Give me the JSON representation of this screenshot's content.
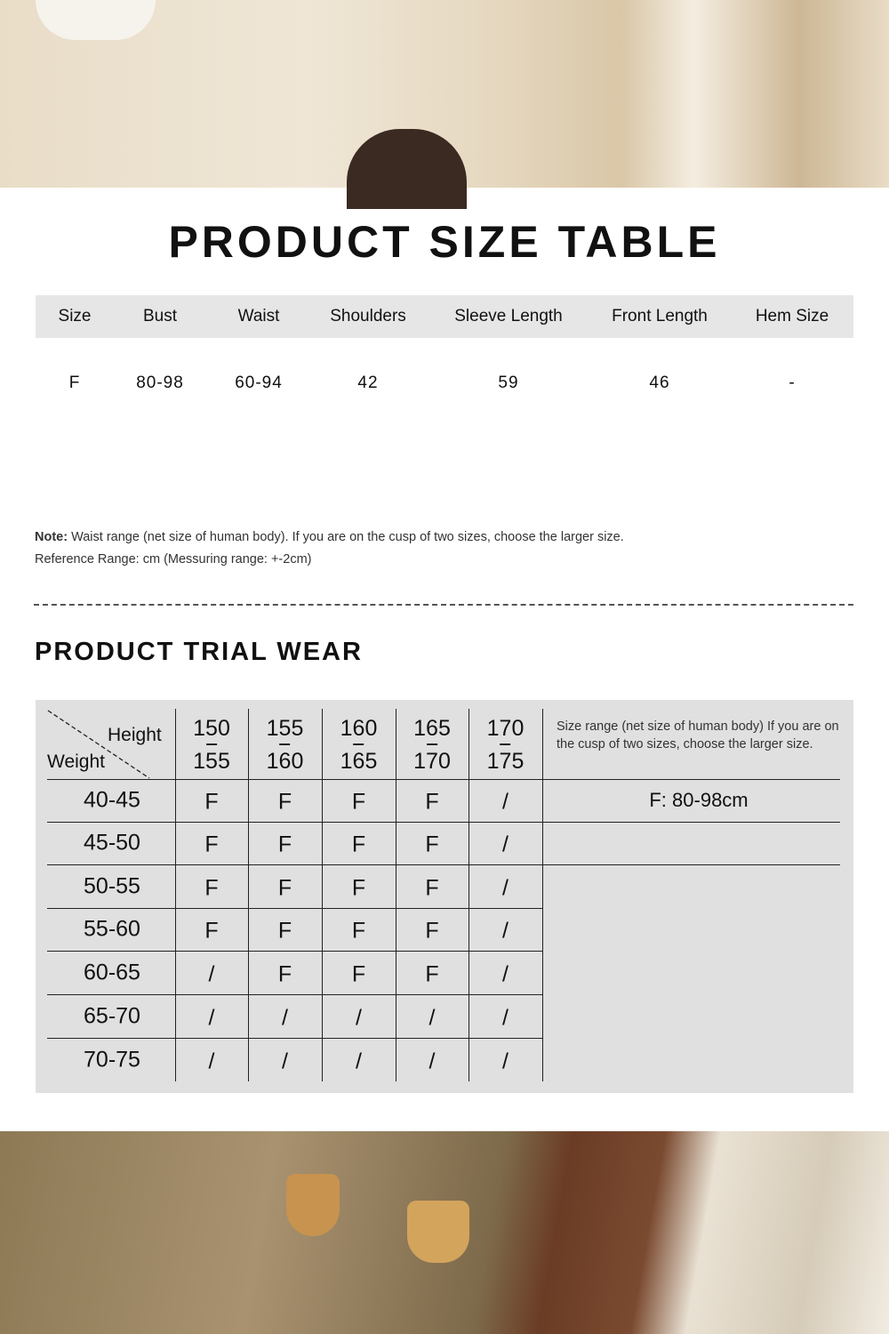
{
  "size_table": {
    "title": "PRODUCT SIZE TABLE",
    "headers": [
      "Size",
      "Bust",
      "Waist",
      "Shoulders",
      "Sleeve Length",
      "Front Length",
      "Hem Size"
    ],
    "rows": [
      [
        "F",
        "80-98",
        "60-94",
        "42",
        "59",
        "46",
        "-"
      ]
    ]
  },
  "note": {
    "label": "Note:",
    "text": " Waist range (net size of human body). If you are on the cusp of two sizes, choose the larger size.",
    "reference": "Reference Range: cm (Messuring range: +-2cm)"
  },
  "trial_wear": {
    "title": "PRODUCT TRIAL WEAR",
    "corner_height": "Height",
    "corner_weight": "Weight",
    "heights": [
      [
        "150",
        "155"
      ],
      [
        "155",
        "160"
      ],
      [
        "160",
        "165"
      ],
      [
        "165",
        "170"
      ],
      [
        "170",
        "175"
      ]
    ],
    "rows": [
      {
        "weight": "40-45",
        "cells": [
          "F",
          "F",
          "F",
          "F",
          "/"
        ]
      },
      {
        "weight": "45-50",
        "cells": [
          "F",
          "F",
          "F",
          "F",
          "/"
        ]
      },
      {
        "weight": "50-55",
        "cells": [
          "F",
          "F",
          "F",
          "F",
          "/"
        ]
      },
      {
        "weight": "55-60",
        "cells": [
          "F",
          "F",
          "F",
          "F",
          "/"
        ]
      },
      {
        "weight": "60-65",
        "cells": [
          "/",
          "F",
          "F",
          "F",
          "/"
        ]
      },
      {
        "weight": "65-70",
        "cells": [
          "/",
          "/",
          "/",
          "/",
          "/"
        ]
      },
      {
        "weight": "70-75",
        "cells": [
          "/",
          "/",
          "/",
          "/",
          "/"
        ]
      }
    ],
    "side_note": "Size range (net size of human body) If you are on the cusp of two sizes, choose the larger size.",
    "size_value": "F: 80-98cm"
  }
}
